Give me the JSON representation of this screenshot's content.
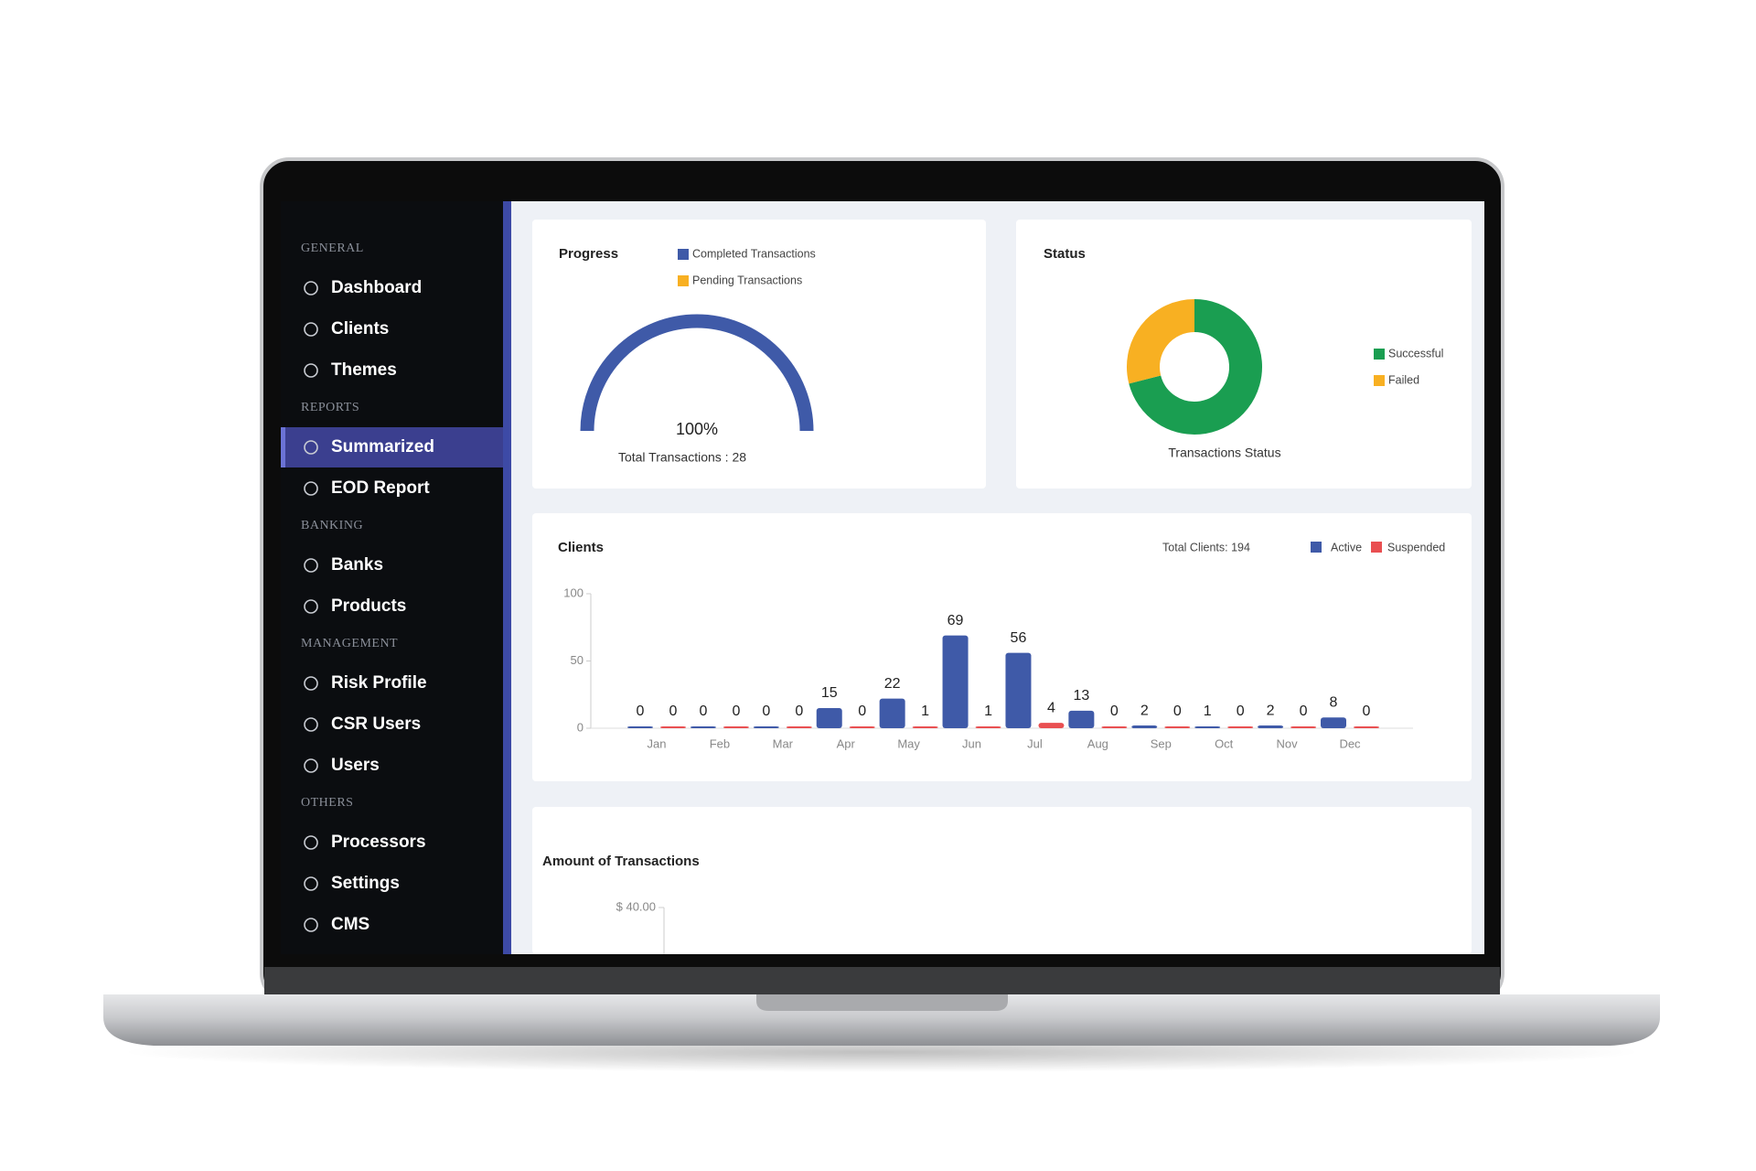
{
  "sidebar": {
    "sections": [
      {
        "header": "GENERAL",
        "items": [
          {
            "label": "Dashboard"
          },
          {
            "label": "Clients"
          },
          {
            "label": "Themes"
          }
        ]
      },
      {
        "header": "REPORTS",
        "items": [
          {
            "label": "Summarized",
            "active": true
          },
          {
            "label": "EOD Report"
          }
        ]
      },
      {
        "header": "BANKING",
        "items": [
          {
            "label": "Banks"
          },
          {
            "label": "Products"
          }
        ]
      },
      {
        "header": "MANAGEMENT",
        "items": [
          {
            "label": "Risk Profile"
          },
          {
            "label": "CSR Users"
          },
          {
            "label": "Users"
          }
        ]
      },
      {
        "header": "OTHERS",
        "items": [
          {
            "label": "Processors"
          },
          {
            "label": "Settings"
          },
          {
            "label": "CMS"
          }
        ]
      }
    ]
  },
  "chart_data": [
    {
      "type": "gauge",
      "title": "Progress",
      "subtitle": "Total Transactions : 28",
      "series": [
        {
          "name": "Completed Transactions",
          "color": "#3f5aa8",
          "values": [
            100
          ],
          "value_labels": [
            "100%"
          ]
        },
        {
          "name": "Pending Transactions",
          "color": "#f8b022",
          "values": [
            0
          ]
        }
      ]
    },
    {
      "type": "pie",
      "title": "Status",
      "subtitle": "Transactions Status",
      "donut": true,
      "categories": [
        "Successful",
        "Failed"
      ],
      "values": [
        71,
        29
      ],
      "colors": [
        "#1a9e51",
        "#f8b022"
      ]
    },
    {
      "type": "bar",
      "title": "Clients",
      "annotation": "Total Clients: 194",
      "categories": [
        "Jan",
        "Feb",
        "Mar",
        "Apr",
        "May",
        "Jun",
        "Jul",
        "Aug",
        "Sep",
        "Oct",
        "Nov",
        "Dec"
      ],
      "series": [
        {
          "name": "Active",
          "color": "#3f5aa8",
          "values": [
            0,
            0,
            0,
            15,
            22,
            69,
            56,
            13,
            2,
            1,
            2,
            8
          ]
        },
        {
          "name": "Suspended",
          "color": "#e94f51",
          "values": [
            0,
            0,
            0,
            0,
            1,
            1,
            4,
            0,
            0,
            0,
            0,
            0
          ]
        }
      ],
      "ylim": [
        0,
        100
      ],
      "yticks": [
        0,
        50,
        100
      ]
    },
    {
      "type": "line",
      "title": "Amount of Transactions",
      "yticks": [
        {
          "value": 40,
          "label": "$ 40.00"
        }
      ]
    }
  ]
}
